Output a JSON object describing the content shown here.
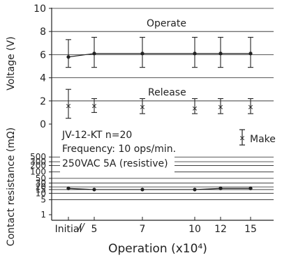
{
  "chart_data": [
    {
      "type": "line",
      "name": "voltage",
      "ylabel": "Voltage (V)",
      "ylim": [
        0,
        10
      ],
      "yticks": [
        "0",
        "2",
        "4",
        "6",
        "8",
        "10"
      ],
      "x": [
        "Initial",
        "5",
        "7",
        "10",
        "12",
        "15"
      ],
      "series": [
        {
          "name": "Operate",
          "marker": "dot",
          "values": [
            5.8,
            6.1,
            6.1,
            6.1,
            6.1,
            6.1
          ],
          "min": [
            4.9,
            4.9,
            4.9,
            4.9,
            4.9,
            4.9
          ],
          "max": [
            7.3,
            7.5,
            7.5,
            7.5,
            7.5,
            7.5
          ]
        },
        {
          "name": "Release",
          "marker": "x",
          "values": [
            1.6,
            1.6,
            1.5,
            1.4,
            1.5,
            1.5
          ],
          "min": [
            0.5,
            1.0,
            0.9,
            0.9,
            0.9,
            0.9
          ],
          "max": [
            3.0,
            2.2,
            2.2,
            2.2,
            2.2,
            2.2
          ]
        }
      ]
    },
    {
      "type": "line",
      "name": "contact-resistance",
      "ylabel": "Contact resistance (mΩ)",
      "yscale": "log",
      "ylim": [
        1,
        1000
      ],
      "yticks": [
        "1",
        "5",
        "10",
        "15",
        "20",
        "30",
        "50",
        "100",
        "200",
        "300",
        "500"
      ],
      "x": [
        "Initial",
        "5",
        "7",
        "10",
        "12",
        "15"
      ],
      "series": [
        {
          "name": "",
          "values": [
            17,
            15,
            15,
            15,
            17,
            17
          ]
        }
      ]
    }
  ],
  "xlabel": "Operation (x10⁴)",
  "xticks": [
    "Initial",
    "5",
    "7",
    "10",
    "12",
    "15"
  ],
  "axis_break": "//",
  "legend": {
    "label": "Make",
    "glyph": "×",
    "placement": "right"
  },
  "annotations": [
    "JV-12-KT n=20",
    "Frequency: 10 ops/min.",
    "250VAC 5A (resistive)"
  ],
  "colors": {
    "line": "#222222",
    "grid": "#222222",
    "background": "#ffffff"
  }
}
